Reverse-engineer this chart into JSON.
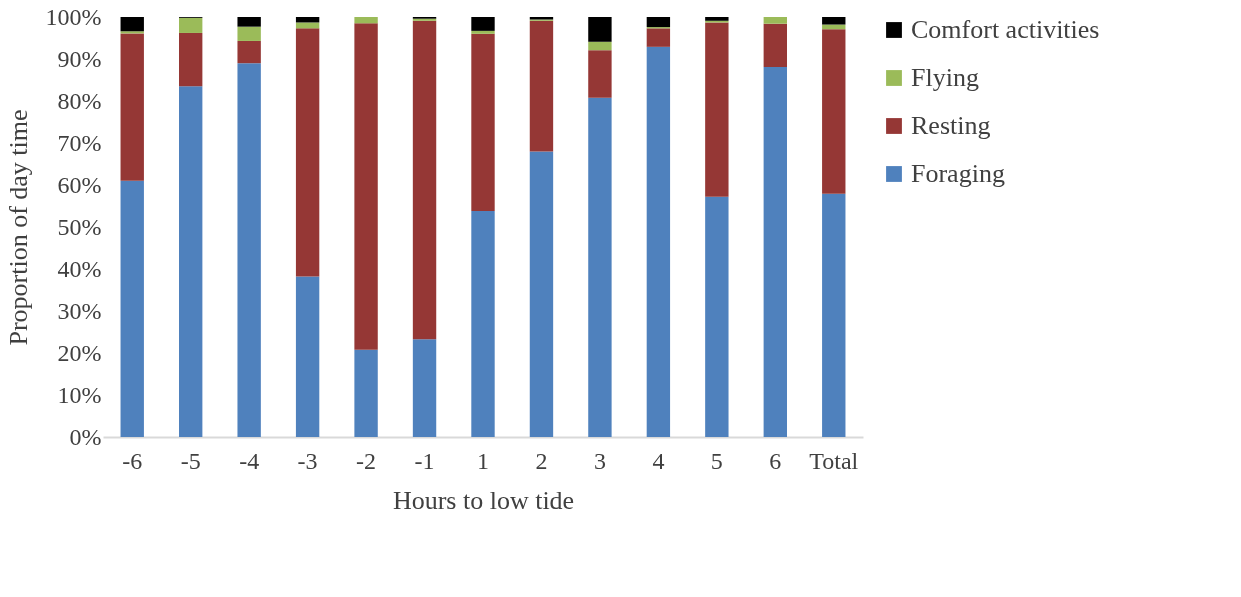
{
  "chart_data": {
    "type": "bar",
    "stacked": true,
    "xlabel": "Hours to low tide",
    "ylabel": "Proportion of day time",
    "categories": [
      "-6",
      "-5",
      "-4",
      "-3",
      "-2",
      "-1",
      "1",
      "2",
      "3",
      "4",
      "5",
      "6",
      "Total"
    ],
    "series": [
      {
        "name": "Foraging",
        "color": "#4f81bd",
        "values": [
          61,
          83.5,
          89,
          38.2,
          20.8,
          23.3,
          53.8,
          68,
          80.8,
          92.9,
          57.2,
          88.1,
          57.9
        ]
      },
      {
        "name": "Resting",
        "color": "#953735",
        "values": [
          35.1,
          12.7,
          5.3,
          59.1,
          77.7,
          75.8,
          42.2,
          31.1,
          11.3,
          4.4,
          41.5,
          10.3,
          39.2
        ]
      },
      {
        "name": "Flying",
        "color": "#9bbb59",
        "values": [
          0.5,
          3.6,
          3.4,
          1.4,
          1.5,
          0.5,
          0.7,
          0.3,
          2,
          0.3,
          0.4,
          1.6,
          1.1
        ]
      },
      {
        "name": "Comfort activities",
        "color": "#000000",
        "values": [
          3.4,
          0.2,
          2.3,
          1.3,
          0,
          0.4,
          3.3,
          0.6,
          5.9,
          2.4,
          0.9,
          0,
          1.8
        ]
      }
    ],
    "ylim": [
      0,
      100
    ],
    "yticks": [
      {
        "value": 0,
        "label": "0%"
      },
      {
        "value": 10,
        "label": "10%"
      },
      {
        "value": 20,
        "label": "20%"
      },
      {
        "value": 30,
        "label": "30%"
      },
      {
        "value": 40,
        "label": "40%"
      },
      {
        "value": 50,
        "label": "50%"
      },
      {
        "value": 60,
        "label": "60%"
      },
      {
        "value": 70,
        "label": "70%"
      },
      {
        "value": 80,
        "label": "80%"
      },
      {
        "value": 90,
        "label": "90%"
      },
      {
        "value": 100,
        "label": "100%"
      }
    ],
    "grid": false,
    "legend": "right"
  }
}
